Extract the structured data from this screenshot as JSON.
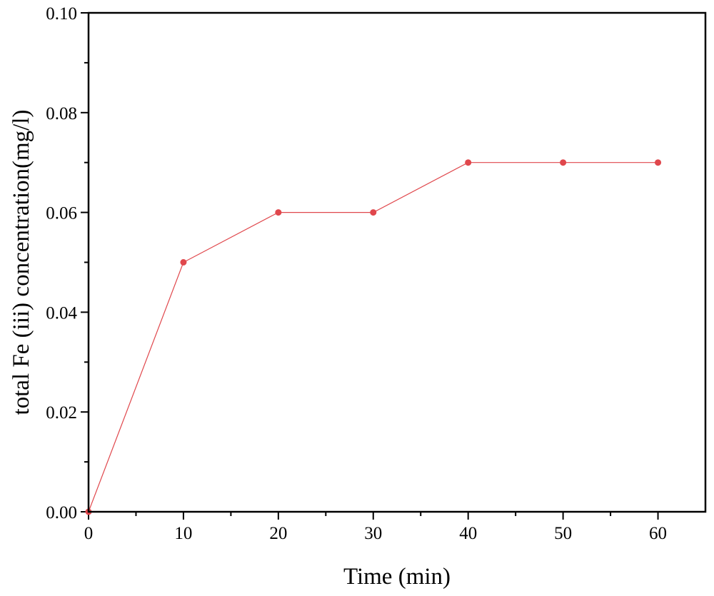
{
  "chart_data": {
    "type": "line",
    "title": "",
    "xlabel": "Time (min)",
    "ylabel": "total Fe (iii) concentration(mg/l)",
    "xlim": [
      0,
      65
    ],
    "ylim": [
      0,
      0.1
    ],
    "x_major_ticks": [
      0,
      10,
      20,
      30,
      40,
      50,
      60
    ],
    "x_tick_labels": [
      "0",
      "10",
      "20",
      "30",
      "40",
      "50",
      "60"
    ],
    "y_major_ticks": [
      0,
      0.02,
      0.04,
      0.06,
      0.08,
      0.1
    ],
    "y_tick_labels": [
      "0.00",
      "0.02",
      "0.04",
      "0.06",
      "0.08",
      "0.10"
    ],
    "x_minor_ticks": [
      5,
      15,
      25,
      35,
      45,
      55
    ],
    "y_minor_ticks": [
      0.01,
      0.03,
      0.05,
      0.07,
      0.09
    ],
    "grid": false,
    "legend": "none",
    "series": [
      {
        "name": "total Fe (iii)",
        "color": "#e0474c",
        "x": [
          0,
          10,
          20,
          30,
          40,
          50,
          60
        ],
        "y": [
          0,
          0.05,
          0.06,
          0.06,
          0.07,
          0.07,
          0.07
        ]
      }
    ]
  }
}
